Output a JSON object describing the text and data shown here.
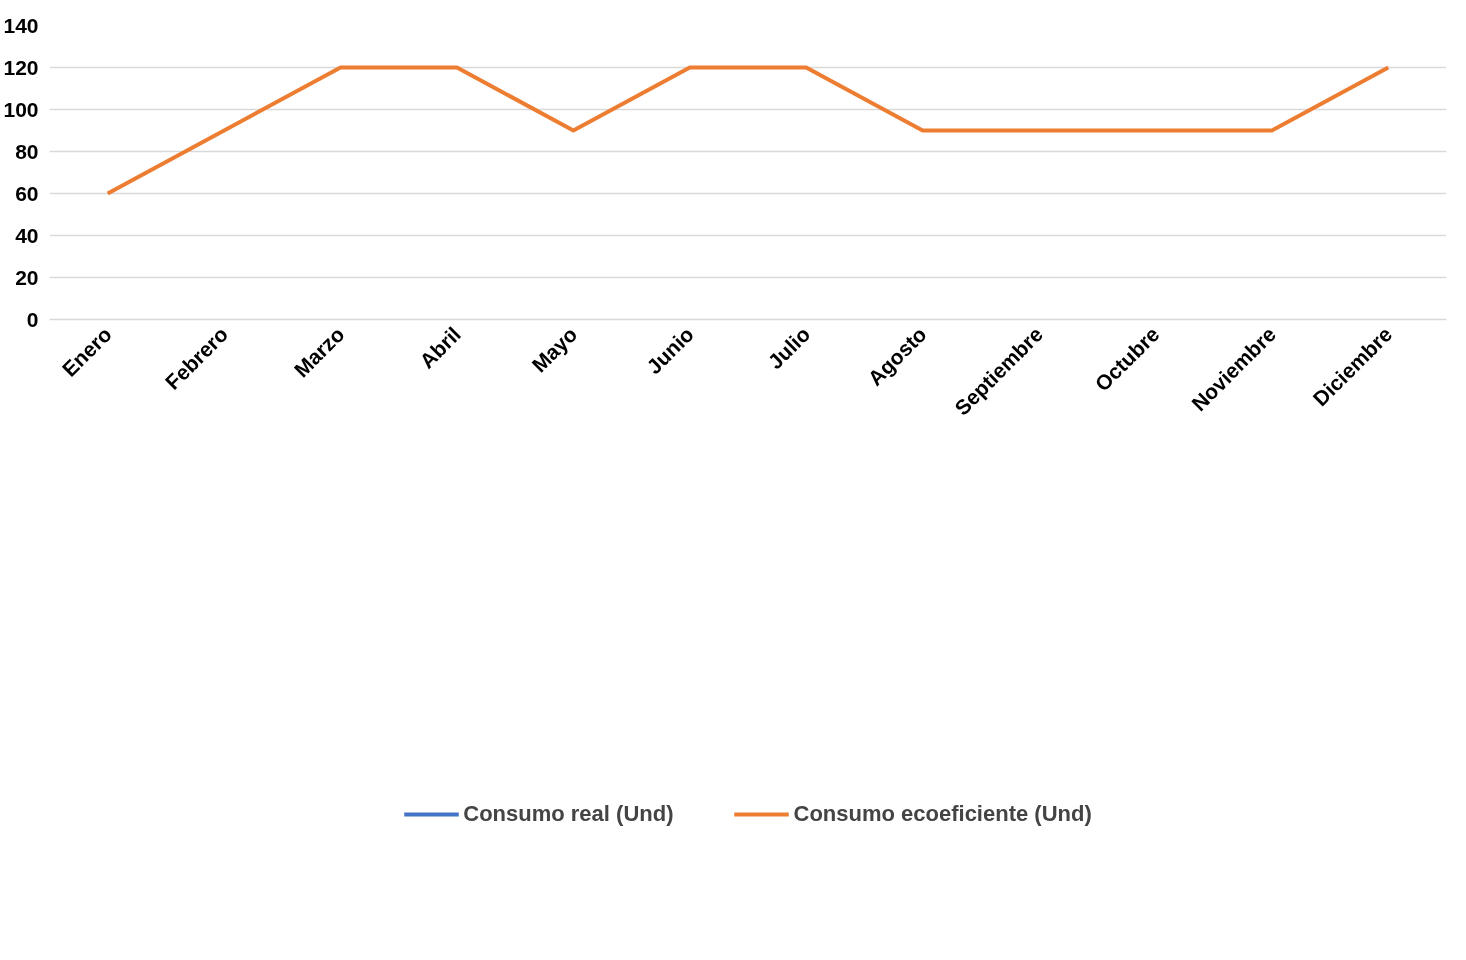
{
  "chart_data": {
    "type": "line",
    "categories": [
      "Enero",
      "Febrero",
      "Marzo",
      "Abril",
      "Mayo",
      "Junio",
      "Julio",
      "Agosto",
      "Septiembre",
      "Octubre",
      "Noviembre",
      "Diciembre"
    ],
    "series": [
      {
        "name": "Consumo real (Und)",
        "color": "#4472c4",
        "values": [
          null,
          null,
          null,
          null,
          null,
          null,
          null,
          null,
          null,
          null,
          null,
          null
        ]
      },
      {
        "name": "Consumo ecoeficiente (Und)",
        "color": "#ed7d31",
        "values": [
          60,
          90,
          120,
          120,
          90,
          120,
          120,
          90,
          90,
          90,
          90,
          120
        ]
      }
    ],
    "ylim": [
      0,
      140
    ],
    "yticks": [
      0,
      20,
      40,
      60,
      80,
      100,
      120,
      140
    ],
    "grid": "y",
    "legend": "bottom",
    "marker": "none",
    "line_style": "solid"
  }
}
